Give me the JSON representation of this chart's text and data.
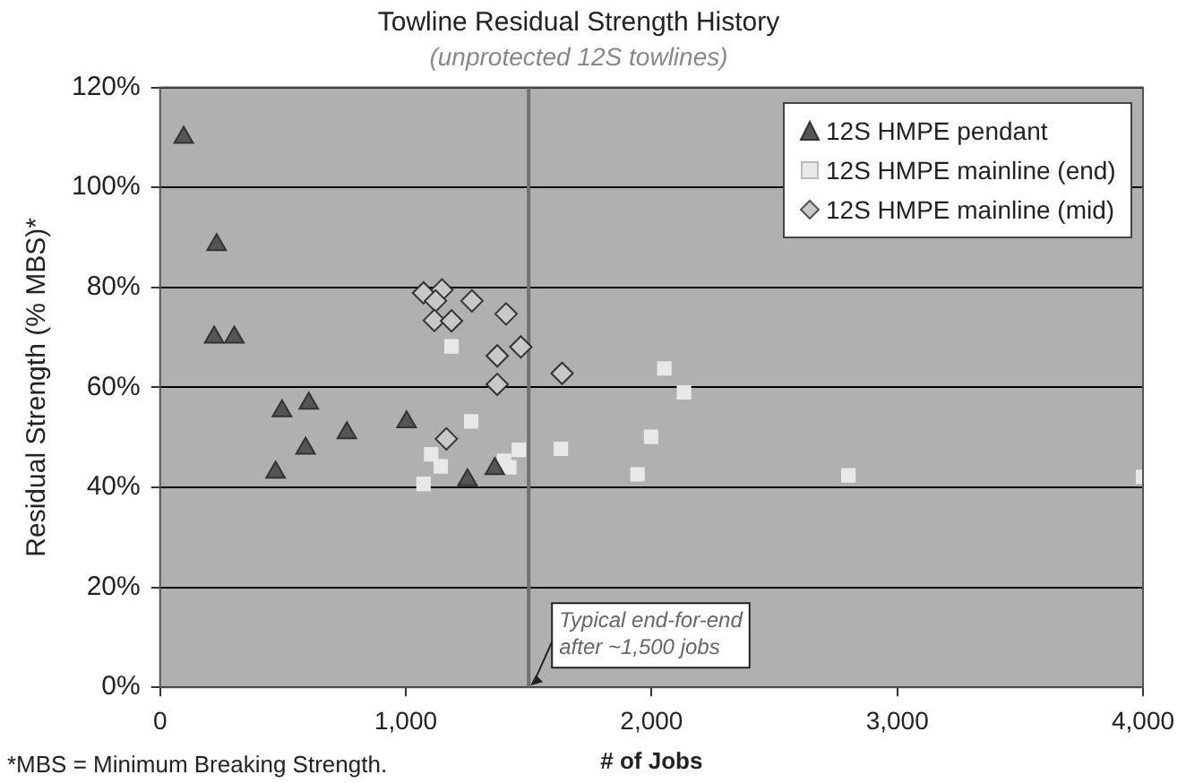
{
  "chart_data": {
    "type": "scatter",
    "title": "Towline Residual Strength History",
    "subtitle": "(unprotected 12S towlines)",
    "xlabel": "# of Jobs",
    "ylabel": "Residual Strength (% MBS)*",
    "xlim": [
      0,
      4000
    ],
    "xticks": [
      0,
      {
        "value": 1000,
        "label": "1,000"
      },
      {
        "value": 2000,
        "label": "2,000"
      },
      {
        "value": 3000,
        "label": "3,000"
      },
      {
        "value": 4000,
        "label": "4,000"
      }
    ],
    "ylim": [
      0,
      120
    ],
    "yticks": [
      {
        "value": 0,
        "label": "0%"
      },
      {
        "value": 20,
        "label": "20%"
      },
      {
        "value": 40,
        "label": "40%"
      },
      {
        "value": 60,
        "label": "60%"
      },
      {
        "value": 80,
        "label": "80%"
      },
      {
        "value": 100,
        "label": "100%"
      },
      {
        "value": 120,
        "label": "120%"
      }
    ],
    "grid": "y",
    "legend": "top right",
    "series": [
      {
        "name": "12S HMPE pendant",
        "color": "#555555",
        "marker": "triangle",
        "x": [
          96,
          230,
          220,
          302,
          496,
          605,
          592,
          470,
          760,
          1003,
          1251,
          1362
        ],
        "values": [
          110,
          88.5,
          70,
          70,
          55.3,
          56.8,
          47.8,
          43,
          50.9,
          53.1,
          41.5,
          43.7
        ]
      },
      {
        "name": "12S HMPE mainline (end)",
        "color": "#e8e8e8",
        "marker": "square",
        "x": [
          1186,
          1266,
          1103,
          1142,
          1072,
          1400,
          1421,
          1460,
          1631,
          1943,
          2052,
          2132,
          1998,
          2801,
          4000
        ],
        "values": [
          68.2,
          53.2,
          46.6,
          44.2,
          40.7,
          45.3,
          44,
          47.5,
          47.7,
          42.6,
          63.8,
          59,
          50.1,
          42.4,
          42.1
        ]
      },
      {
        "name": "12S HMPE mainline (mid)",
        "color": "#c8c8c8",
        "marker": "diamond",
        "x": [
          1072,
          1147,
          1121,
          1116,
          1186,
          1269,
          1408,
          1468,
          1372,
          1372,
          1636,
          1165
        ],
        "values": [
          78.9,
          79.5,
          77.3,
          73.4,
          73.3,
          77.3,
          74.7,
          68.1,
          66.3,
          60.6,
          62.8,
          49.7
        ]
      }
    ],
    "ref_lines": [
      {
        "axis": "x",
        "value": 1500,
        "color": "#707070"
      }
    ],
    "annotations": [
      {
        "text": "Typical end-for-end\nafter ~1,500 jobs",
        "x": 1500,
        "y": 0
      },
      "*MBS = Minimum Breaking Strength."
    ]
  }
}
